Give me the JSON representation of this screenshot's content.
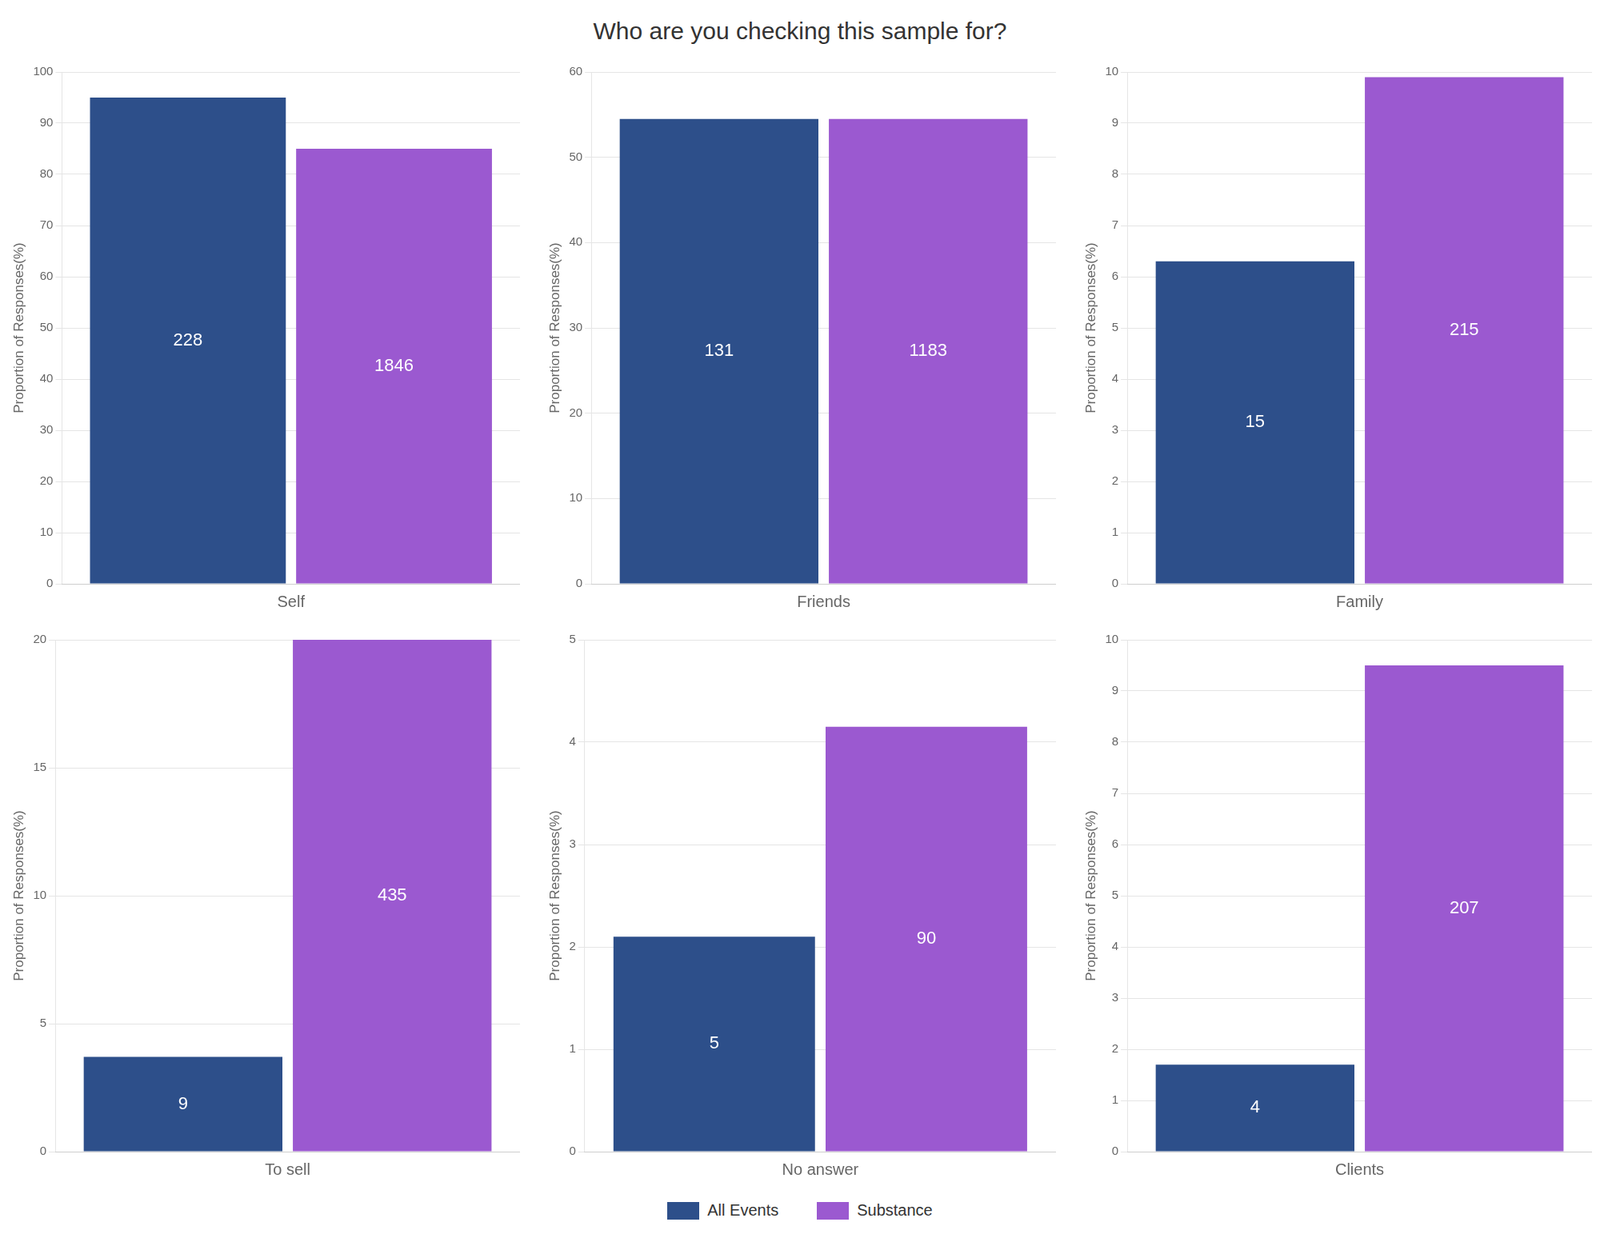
{
  "title": "Who are you checking this sample for?",
  "legend": "bottom",
  "chart_data": [
    {
      "type": "bar",
      "categories": [
        "Self"
      ],
      "ylabel": "Proportion of Responses(%)",
      "series": [
        {
          "name": "All Events",
          "color": "#2d4f8a",
          "values": [
            95.0
          ],
          "counts": [
            228
          ]
        },
        {
          "name": "Substance",
          "color": "#9b59d0",
          "values": [
            85.0
          ],
          "counts": [
            1846
          ]
        }
      ],
      "ylim": [
        0,
        100
      ],
      "yticks": [
        0,
        10,
        20,
        30,
        40,
        50,
        60,
        70,
        80,
        90,
        100
      ],
      "grid": true
    },
    {
      "type": "bar",
      "categories": [
        "Friends"
      ],
      "ylabel": "Proportion of Responses(%)",
      "series": [
        {
          "name": "All Events",
          "color": "#2d4f8a",
          "values": [
            54.5
          ],
          "counts": [
            131
          ]
        },
        {
          "name": "Substance",
          "color": "#9b59d0",
          "values": [
            54.5
          ],
          "counts": [
            1183
          ]
        }
      ],
      "ylim": [
        0,
        60
      ],
      "yticks": [
        0,
        10,
        20,
        30,
        40,
        50,
        60
      ],
      "grid": true
    },
    {
      "type": "bar",
      "categories": [
        "Family"
      ],
      "ylabel": "Proportion of Responses(%)",
      "series": [
        {
          "name": "All Events",
          "color": "#2d4f8a",
          "values": [
            6.3
          ],
          "counts": [
            15
          ]
        },
        {
          "name": "Substance",
          "color": "#9b59d0",
          "values": [
            9.9
          ],
          "counts": [
            215
          ]
        }
      ],
      "ylim": [
        0,
        10
      ],
      "yticks": [
        0,
        1,
        2,
        3,
        4,
        5,
        6,
        7,
        8,
        9,
        10
      ],
      "grid": true
    },
    {
      "type": "bar",
      "categories": [
        "To sell"
      ],
      "ylabel": "Proportion of Responses(%)",
      "series": [
        {
          "name": "All Events",
          "color": "#2d4f8a",
          "values": [
            3.7
          ],
          "counts": [
            9
          ]
        },
        {
          "name": "Substance",
          "color": "#9b59d0",
          "values": [
            20.0
          ],
          "counts": [
            435
          ]
        }
      ],
      "ylim": [
        0,
        20
      ],
      "yticks": [
        0,
        5,
        10,
        15,
        20
      ],
      "grid": true
    },
    {
      "type": "bar",
      "categories": [
        "No answer"
      ],
      "ylabel": "Proportion of Responses(%)",
      "series": [
        {
          "name": "All Events",
          "color": "#2d4f8a",
          "values": [
            2.1
          ],
          "counts": [
            5
          ]
        },
        {
          "name": "Substance",
          "color": "#9b59d0",
          "values": [
            4.15
          ],
          "counts": [
            90
          ]
        }
      ],
      "ylim": [
        0,
        5
      ],
      "yticks": [
        0,
        1,
        2,
        3,
        4,
        5
      ],
      "grid": true
    },
    {
      "type": "bar",
      "categories": [
        "Clients"
      ],
      "ylabel": "Proportion of Responses(%)",
      "series": [
        {
          "name": "All Events",
          "color": "#2d4f8a",
          "values": [
            1.7
          ],
          "counts": [
            4
          ]
        },
        {
          "name": "Substance",
          "color": "#9b59d0",
          "values": [
            9.5
          ],
          "counts": [
            207
          ]
        }
      ],
      "ylim": [
        0,
        10
      ],
      "yticks": [
        0,
        1,
        2,
        3,
        4,
        5,
        6,
        7,
        8,
        9,
        10
      ],
      "grid": true
    }
  ]
}
